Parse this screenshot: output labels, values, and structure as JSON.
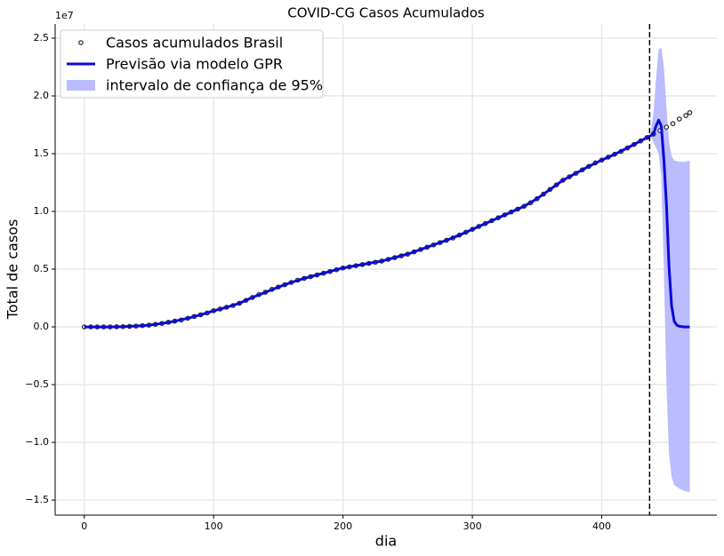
{
  "chart_data": {
    "type": "gpr-forecast",
    "title": "COVID-CG Casos Acumulados",
    "xlabel": "dia",
    "ylabel": "Total de casos",
    "y_offset_label": "1e7",
    "xlim": [
      -22.5,
      489
    ],
    "ylim": [
      -16300000,
      26230000
    ],
    "xticks": [
      0,
      100,
      200,
      300,
      400
    ],
    "yticks": [
      {
        "value": -15000000,
        "label": "−1.5"
      },
      {
        "value": -10000000,
        "label": "−1.0"
      },
      {
        "value": -5000000,
        "label": "−0.5"
      },
      {
        "value": 0,
        "label": "0.0"
      },
      {
        "value": 5000000,
        "label": "0.5"
      },
      {
        "value": 10000000,
        "label": "1.0"
      },
      {
        "value": 15000000,
        "label": "1.5"
      },
      {
        "value": 20000000,
        "label": "2.0"
      },
      {
        "value": 25000000,
        "label": "2.5"
      }
    ],
    "grid": true,
    "legend": "upper left",
    "vline": 437,
    "series": [
      {
        "name": "Casos acumulados Brasil",
        "kind": "scatter",
        "color": "#222222",
        "x": [
          0,
          5,
          10,
          15,
          20,
          25,
          30,
          35,
          40,
          45,
          50,
          55,
          60,
          65,
          70,
          75,
          80,
          85,
          90,
          95,
          100,
          105,
          110,
          115,
          120,
          125,
          130,
          135,
          140,
          145,
          150,
          155,
          160,
          165,
          170,
          175,
          180,
          185,
          190,
          195,
          200,
          205,
          210,
          215,
          220,
          225,
          230,
          235,
          240,
          245,
          250,
          255,
          260,
          265,
          270,
          275,
          280,
          285,
          290,
          295,
          300,
          305,
          310,
          315,
          320,
          325,
          330,
          335,
          340,
          345,
          350,
          355,
          360,
          365,
          370,
          375,
          380,
          385,
          390,
          395,
          400,
          405,
          410,
          415,
          420,
          425,
          430,
          435,
          440,
          445,
          450,
          455,
          460,
          465,
          468
        ],
        "values": [
          0,
          0,
          0,
          0,
          0,
          10000,
          20000,
          40000,
          70000,
          110000,
          150000,
          220000,
          300000,
          400000,
          500000,
          600000,
          750000,
          900000,
          1050000,
          1200000,
          1400000,
          1550000,
          1700000,
          1850000,
          2050000,
          2300000,
          2550000,
          2800000,
          3000000,
          3250000,
          3450000,
          3650000,
          3850000,
          4050000,
          4200000,
          4350000,
          4500000,
          4650000,
          4800000,
          4950000,
          5100000,
          5200000,
          5300000,
          5400000,
          5500000,
          5600000,
          5700000,
          5850000,
          6000000,
          6150000,
          6300000,
          6500000,
          6700000,
          6900000,
          7100000,
          7300000,
          7500000,
          7700000,
          7950000,
          8200000,
          8450000,
          8700000,
          8950000,
          9200000,
          9450000,
          9700000,
          9950000,
          10200000,
          10450000,
          10750000,
          11100000,
          11500000,
          11900000,
          12300000,
          12700000,
          13000000,
          13300000,
          13600000,
          13900000,
          14200000,
          14450000,
          14700000,
          14950000,
          15200000,
          15500000,
          15800000,
          16100000,
          16400000,
          16700000,
          17000000,
          17300000,
          17600000,
          18000000,
          18300000,
          18550000
        ]
      },
      {
        "name": "Previsão via modelo GPR",
        "kind": "line",
        "color": "#0a0ad8",
        "x": [
          0,
          10,
          20,
          30,
          40,
          50,
          60,
          70,
          80,
          90,
          100,
          110,
          120,
          130,
          140,
          150,
          160,
          170,
          180,
          190,
          200,
          210,
          220,
          230,
          240,
          250,
          260,
          270,
          280,
          290,
          300,
          310,
          320,
          330,
          340,
          350,
          360,
          370,
          380,
          390,
          400,
          410,
          420,
          430,
          440,
          442,
          444,
          446,
          448,
          450,
          452,
          454,
          456,
          458,
          460,
          464,
          468
        ],
        "values": [
          0,
          0,
          0,
          20000,
          70000,
          150000,
          300000,
          500000,
          750000,
          1050000,
          1400000,
          1700000,
          2050000,
          2550000,
          3000000,
          3450000,
          3850000,
          4200000,
          4500000,
          4800000,
          5100000,
          5300000,
          5500000,
          5700000,
          6000000,
          6300000,
          6700000,
          7100000,
          7500000,
          7950000,
          8450000,
          8950000,
          9450000,
          9950000,
          10450000,
          11100000,
          11900000,
          12700000,
          13300000,
          13900000,
          14450000,
          14950000,
          15500000,
          16100000,
          16700000,
          17400000,
          17900000,
          17400000,
          14500000,
          10600000,
          5200000,
          1800000,
          500000,
          150000,
          50000,
          0,
          0
        ]
      },
      {
        "name": "intervalo de confiança de 95%",
        "kind": "band",
        "color": "#bbbbff",
        "x": [
          438,
          440,
          442,
          444,
          446,
          448,
          450,
          452,
          454,
          456,
          460,
          464,
          468
        ],
        "upper": [
          17000000,
          18500000,
          21500000,
          24000000,
          24200000,
          22500000,
          19000000,
          16000000,
          14800000,
          14400000,
          14300000,
          14300000,
          14400000
        ],
        "lower": [
          16500000,
          16000000,
          15500000,
          15000000,
          13000000,
          5000000,
          -5000000,
          -11000000,
          -13000000,
          -13700000,
          -14000000,
          -14200000,
          -14300000
        ]
      }
    ]
  }
}
